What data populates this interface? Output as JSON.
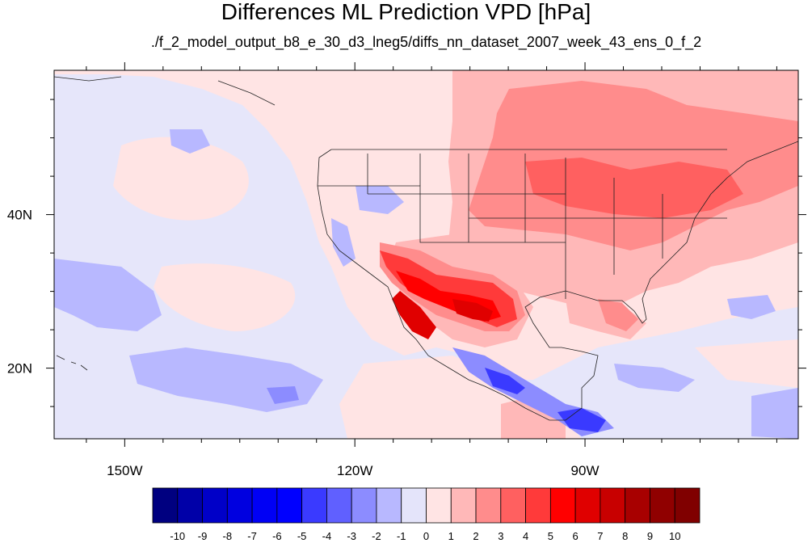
{
  "title": "Differences ML Prediction VPD [hPa]",
  "subtitle": "./f_2_model_output_b8_e_30_d3_lneg5/diffs_nn_dataset_2007_week_43_ens_0_f_2",
  "map": {
    "lon_range": [
      -159.2,
      -62.2
    ],
    "lat_range": [
      10.8,
      58.8
    ],
    "lon_ticks": [
      {
        "value": -150,
        "label": "150W"
      },
      {
        "value": -120,
        "label": "120W"
      },
      {
        "value": -90,
        "label": "90W"
      }
    ],
    "lat_ticks": [
      {
        "value": 40,
        "label": "40N"
      },
      {
        "value": 20,
        "label": "20N"
      }
    ],
    "projection": "cylindrical equidistant"
  },
  "colorbar": {
    "levels": [
      "-10",
      "-9",
      "-8",
      "-7",
      "-6",
      "-5",
      "-4",
      "-3",
      "-2",
      "-1",
      "0",
      "1",
      "2",
      "3",
      "4",
      "5",
      "6",
      "7",
      "8",
      "9",
      "10"
    ],
    "colors": [
      "#000080",
      "#0000a8",
      "#0000c8",
      "#0000e0",
      "#0000f5",
      "#0000ff",
      "#3a3aff",
      "#6060ff",
      "#8c8cff",
      "#b8b8ff",
      "#e4e4fa",
      "#ffe4e4",
      "#ffb8b8",
      "#ff8c8c",
      "#ff6060",
      "#ff3a3a",
      "#ff0000",
      "#e00000",
      "#c80000",
      "#a80000",
      "#900000",
      "#800000"
    ]
  }
}
